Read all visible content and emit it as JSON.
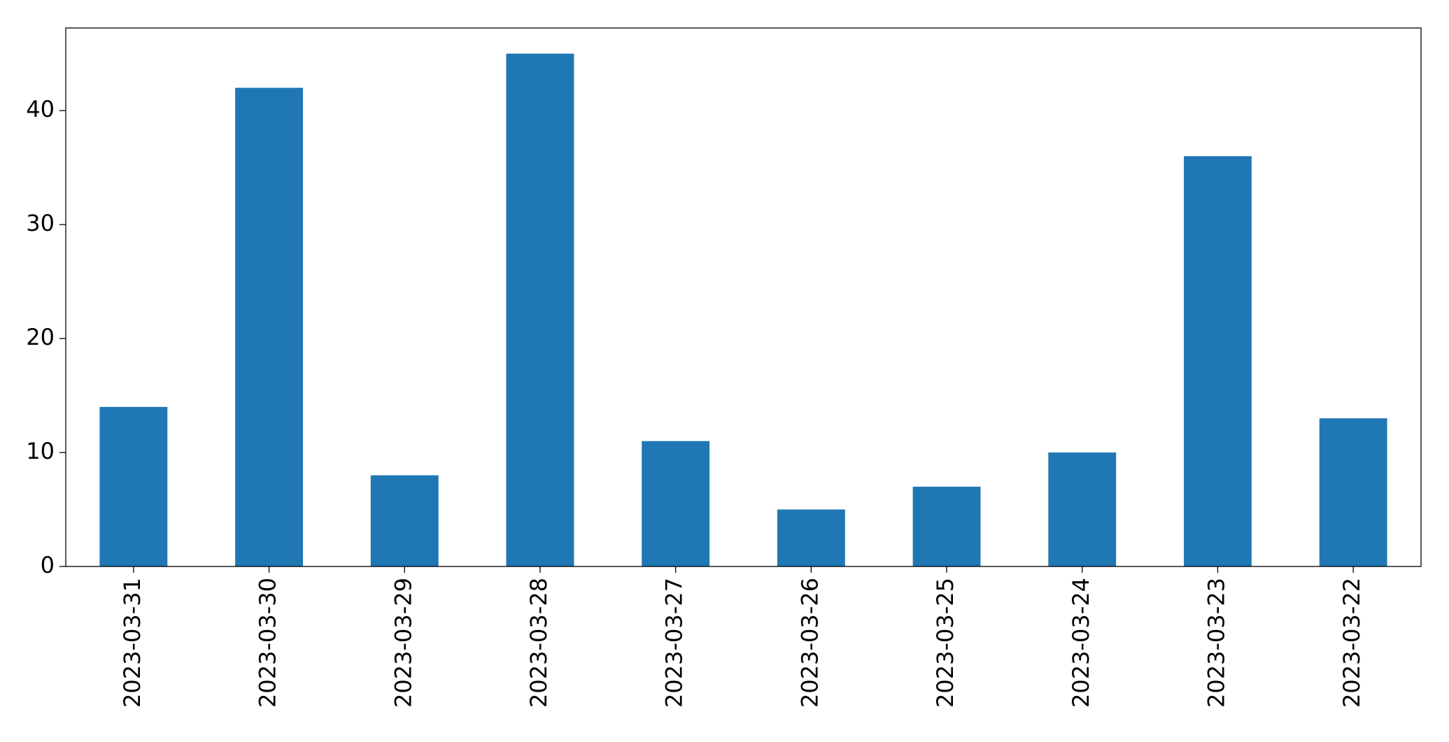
{
  "chart_data": {
    "type": "bar",
    "categories": [
      "2023-03-31",
      "2023-03-30",
      "2023-03-29",
      "2023-03-28",
      "2023-03-27",
      "2023-03-26",
      "2023-03-25",
      "2023-03-24",
      "2023-03-23",
      "2023-03-22"
    ],
    "values": [
      14,
      42,
      8,
      45,
      11,
      5,
      7,
      10,
      36,
      13
    ],
    "color": "#1f77b4",
    "ylim": [
      0,
      47.25
    ],
    "yticks": [
      0,
      10,
      20,
      30,
      40
    ],
    "grid": false
  }
}
